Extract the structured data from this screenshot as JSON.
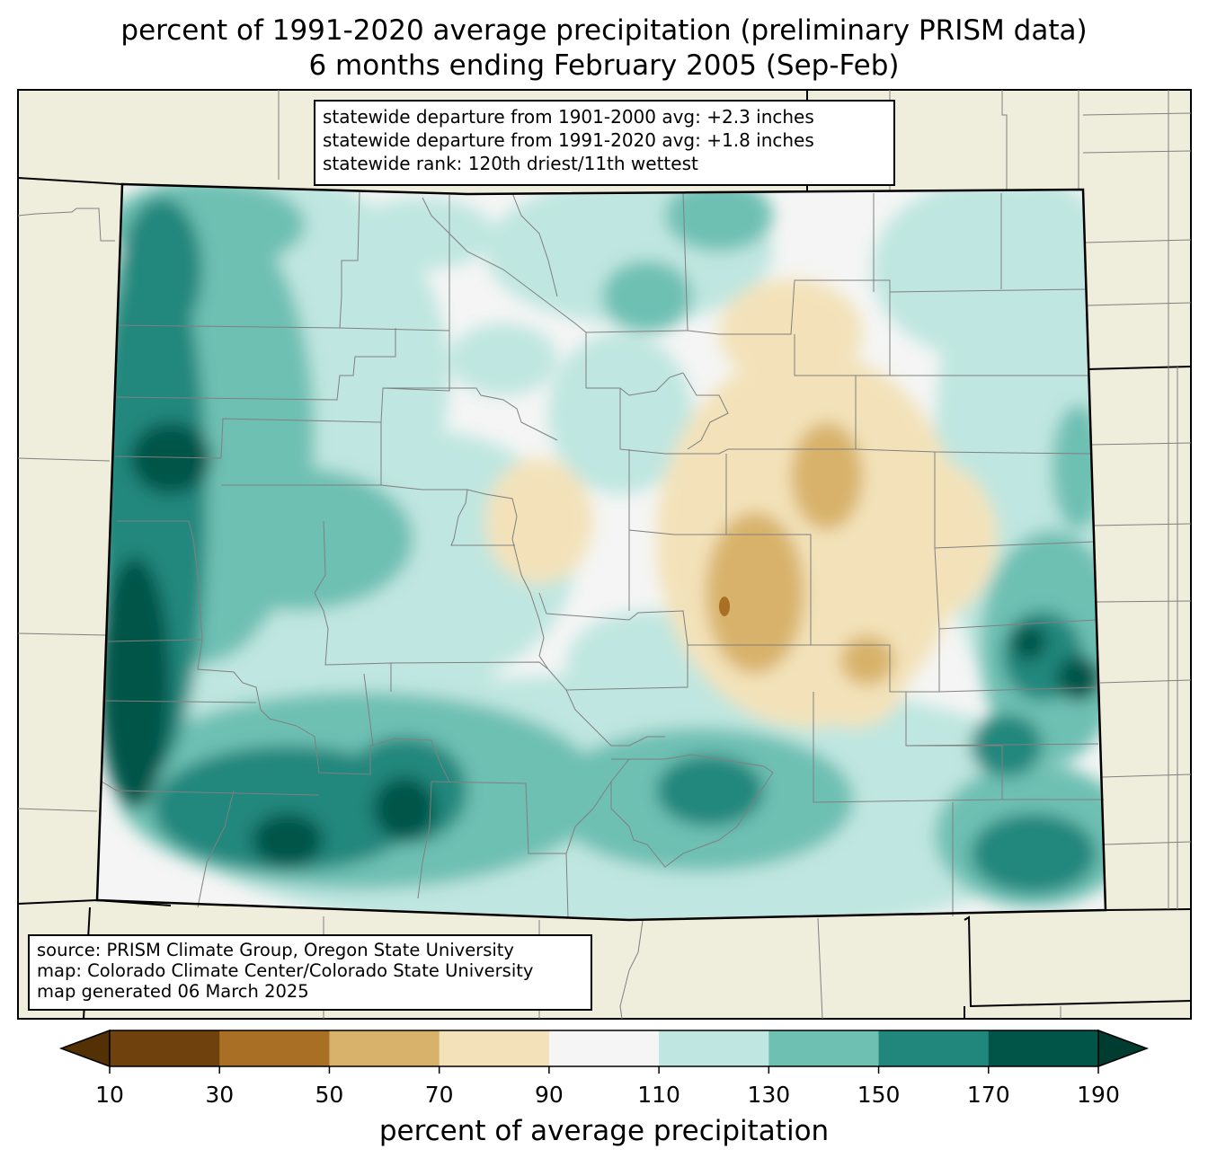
{
  "title": {
    "line1": "percent of 1991-2020 average precipitation (preliminary PRISM data)",
    "line2": "6 months ending February 2005 (Sep-Feb)"
  },
  "stats": {
    "line1": "statewide departure from 1901-2000 avg: +2.3 inches",
    "line2": "statewide departure from 1991-2020 avg: +1.8 inches",
    "line3": "statewide rank: 120th driest/11th wettest"
  },
  "source": {
    "line1": "source: PRISM Climate Group, Oregon State University",
    "line2": "map: Colorado Climate Center/Colorado State University",
    "line3": "map generated 06 March 2025"
  },
  "colorbar": {
    "label": "percent of average precipitation",
    "ticks": [
      "10",
      "30",
      "50",
      "70",
      "90",
      "110",
      "130",
      "150",
      "170",
      "190"
    ],
    "colors": [
      "#6f410d",
      "#a86f25",
      "#d8b26a",
      "#f3e2b9",
      "#f4f5f4",
      "#bfe6e0",
      "#6ec0b3",
      "#21877d",
      "#015448"
    ],
    "under_color": "#543005",
    "over_color": "#003c30"
  },
  "colors": {
    "land": "#efeddb",
    "state_border": "#000000",
    "county_border": "#808080"
  }
}
